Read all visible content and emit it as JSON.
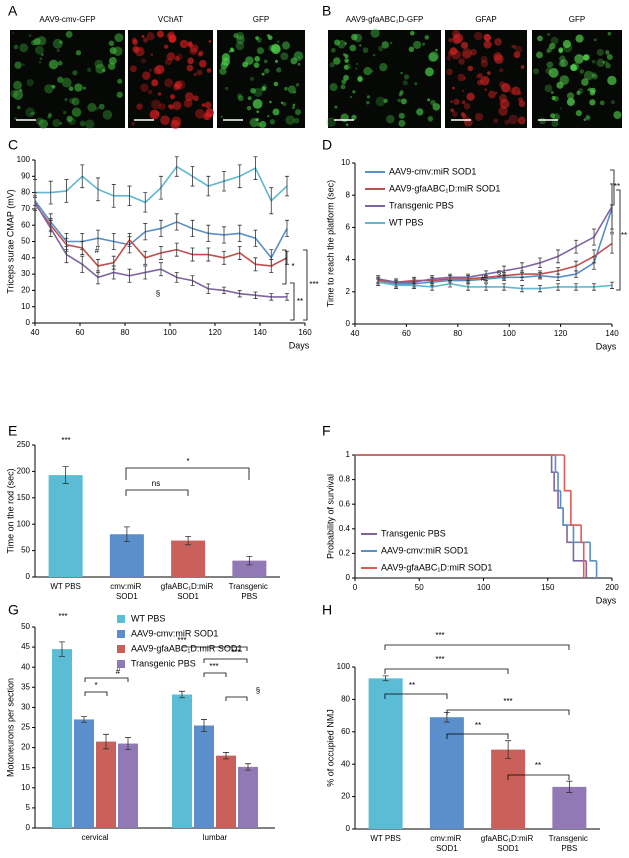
{
  "chart_data": [
    {
      "panel": "A",
      "type": "image",
      "captions": [
        "AAV9-cmv-GFP",
        "VChAT",
        "GFP"
      ],
      "colors": [
        "#3fae3a",
        "#e02020",
        "#4ad04a"
      ]
    },
    {
      "panel": "B",
      "type": "image",
      "captions": [
        "AAV9-gfaABC₁D-GFP",
        "GFAP",
        "GFP"
      ],
      "colors": [
        "#48c848",
        "#d42424",
        "#52cc4a"
      ]
    },
    {
      "panel": "C",
      "type": "line",
      "y_label": "Triceps surae CMAP (mV)",
      "x_label": "Days",
      "x": [
        40,
        47,
        54,
        61,
        68,
        75,
        82,
        89,
        96,
        103,
        110,
        117,
        124,
        131,
        138,
        145,
        152
      ],
      "xlim": [
        40,
        160
      ],
      "xticks": [
        40,
        60,
        80,
        100,
        120,
        140,
        160
      ],
      "ylim": [
        0,
        100
      ],
      "yticks": [
        0,
        10,
        20,
        30,
        40,
        50,
        60,
        70,
        80,
        90,
        100
      ],
      "series": [
        {
          "color": "#5fb8d0",
          "values": [
            80,
            80,
            81,
            90,
            82,
            78,
            78,
            74,
            83,
            96,
            90,
            84,
            87,
            90,
            95,
            75,
            84
          ],
          "errors": [
            8,
            7,
            7,
            7,
            7,
            7,
            6,
            6,
            7,
            6,
            6,
            6,
            6,
            7,
            7,
            8,
            6
          ]
        },
        {
          "color": "#5a8fc6",
          "values": [
            75,
            62,
            50,
            50,
            52,
            50,
            48,
            56,
            58,
            62,
            58,
            55,
            54,
            55,
            52,
            40,
            58
          ],
          "errors": [
            5,
            5,
            5,
            5,
            5,
            5,
            5,
            5,
            5,
            5,
            5,
            5,
            5,
            5,
            5,
            5,
            5
          ]
        },
        {
          "color": "#c0504d",
          "values": [
            73,
            60,
            48,
            46,
            35,
            37,
            51,
            40,
            43,
            45,
            42,
            42,
            40,
            43,
            36,
            35,
            40
          ],
          "errors": [
            4,
            4,
            4,
            4,
            4,
            4,
            4,
            4,
            4,
            4,
            4,
            4,
            4,
            4,
            4,
            4,
            4
          ]
        },
        {
          "color": "#8064a2",
          "values": [
            74,
            58,
            42,
            36,
            28,
            31,
            29,
            31,
            33,
            28,
            26,
            21,
            20,
            18,
            17,
            16,
            16
          ],
          "errors": [
            4,
            5,
            5,
            5,
            4,
            4,
            4,
            4,
            4,
            3,
            3,
            3,
            2,
            2,
            2,
            2,
            2
          ]
        }
      ],
      "annotations": [
        "#",
        "§",
        "*",
        "***",
        "**"
      ]
    },
    {
      "panel": "D",
      "type": "line",
      "y_label": "Time to reach the platform (sec)",
      "x_label": "Days",
      "x": [
        49,
        56,
        63,
        70,
        77,
        84,
        91,
        98,
        105,
        112,
        119,
        126,
        133,
        140
      ],
      "xlim": [
        40,
        140
      ],
      "xticks": [
        40,
        60,
        80,
        100,
        120,
        140
      ],
      "ylim": [
        0,
        10
      ],
      "yticks": [
        0,
        2,
        4,
        6,
        8,
        10
      ],
      "series": [
        {
          "name": "AAV9-cmv:miR SOD1",
          "color": "#5a8fc6",
          "values": [
            2.6,
            2.5,
            2.5,
            2.6,
            2.7,
            2.7,
            2.8,
            2.9,
            2.9,
            3.0,
            2.9,
            3.1,
            3.8,
            7.2
          ],
          "errors": [
            0.2,
            0.2,
            0.2,
            0.2,
            0.2,
            0.2,
            0.2,
            0.2,
            0.2,
            0.2,
            0.2,
            0.2,
            0.4,
            1.5
          ]
        },
        {
          "name": "AAV9-gfaABC₁D:miR SOD1",
          "color": "#c0504d",
          "values": [
            2.7,
            2.6,
            2.7,
            2.7,
            2.8,
            2.8,
            2.9,
            3.0,
            3.1,
            3.1,
            3.3,
            3.6,
            4.2,
            5.0
          ],
          "errors": [
            0.2,
            0.2,
            0.2,
            0.2,
            0.2,
            0.2,
            0.2,
            0.2,
            0.2,
            0.2,
            0.2,
            0.3,
            0.4,
            0.6
          ]
        },
        {
          "name": "Transgenic PBS",
          "color": "#8064a2",
          "values": [
            2.8,
            2.6,
            2.6,
            2.8,
            2.9,
            2.9,
            3.1,
            3.3,
            3.5,
            3.8,
            4.2,
            4.8,
            5.4,
            7.3
          ],
          "errors": [
            0.2,
            0.2,
            0.2,
            0.2,
            0.2,
            0.2,
            0.2,
            0.3,
            0.3,
            0.3,
            0.4,
            0.4,
            0.5,
            1.4
          ]
        },
        {
          "name": "WT PBS",
          "color": "#5fb8d0",
          "values": [
            2.6,
            2.4,
            2.4,
            2.3,
            2.5,
            2.3,
            2.3,
            2.3,
            2.2,
            2.2,
            2.3,
            2.3,
            2.3,
            2.4
          ],
          "errors": [
            0.2,
            0.2,
            0.2,
            0.2,
            0.2,
            0.2,
            0.2,
            0.2,
            0.2,
            0.2,
            0.2,
            0.2,
            0.2,
            0.2
          ]
        }
      ],
      "annotations": [
        "#",
        "§",
        "**",
        "**"
      ]
    },
    {
      "panel": "E",
      "type": "bar",
      "y_label": "Time on the rod (sec)",
      "categories": [
        "WT PBS",
        "cmv:miR\nSOD1",
        "gfaABC₁D:miR\nSOD1",
        "Transgenic\nPBS"
      ],
      "values": [
        193,
        81,
        69,
        31
      ],
      "errors": [
        16,
        14,
        8,
        8
      ],
      "colors": [
        "#5bbcd6",
        "#5b8fcb",
        "#c9605a",
        "#9079b4"
      ],
      "ylim": [
        0,
        250
      ],
      "yticks": [
        0,
        50,
        100,
        150,
        200,
        250
      ],
      "annotations": [
        "***",
        "ns",
        "*"
      ]
    },
    {
      "panel": "F",
      "type": "survival",
      "y_label": "Probability of survival",
      "x_label": "Days",
      "xlim": [
        0,
        200
      ],
      "xticks": [
        0,
        50,
        100,
        150,
        200
      ],
      "ylim": [
        0,
        1
      ],
      "yticks": [
        0,
        0.2,
        0.4,
        0.6,
        0.8,
        1
      ],
      "series": [
        {
          "name": "Transgenic PBS",
          "color": "#8064a2",
          "x": [
            0,
            153,
            155,
            158,
            162,
            165,
            170,
            180
          ],
          "values": [
            1,
            0.86,
            0.71,
            0.57,
            0.43,
            0.29,
            0.14,
            0
          ]
        },
        {
          "name": "AAV9-cmv:miR SOD1",
          "color": "#5a8fc6",
          "x": [
            0,
            156,
            158,
            160,
            162,
            170,
            183,
            188
          ],
          "values": [
            1,
            0.86,
            0.71,
            0.57,
            0.43,
            0.29,
            0.14,
            0
          ]
        },
        {
          "name": "AAV9-gfaABC₁D:miR SOD1",
          "color": "#e05a55",
          "x": [
            0,
            163,
            168,
            176,
            178
          ],
          "values": [
            1,
            0.71,
            0.43,
            0.29,
            0
          ]
        }
      ]
    },
    {
      "panel": "G",
      "type": "bar",
      "y_label": "Motoneurons per section",
      "categories": [
        "cervical",
        "lumbar"
      ],
      "ylim": [
        0,
        50
      ],
      "yticks": [
        0,
        5,
        10,
        15,
        20,
        25,
        30,
        35,
        40,
        45,
        50
      ],
      "series": [
        {
          "name": "WT PBS",
          "color": "#5bbcd6",
          "values": [
            44.5,
            33.2
          ],
          "errors": [
            1.8,
            0.8
          ]
        },
        {
          "name": "AAV9-cmv:miR SOD1",
          "color": "#5b8fcb",
          "values": [
            27,
            25.5
          ],
          "errors": [
            0.7,
            1.5
          ]
        },
        {
          "name": "AAV9-gfaABC₁D:miR SOD1",
          "color": "#c9605a",
          "values": [
            21.5,
            18
          ],
          "errors": [
            1.8,
            0.8
          ]
        },
        {
          "name": "Transgenic PBS",
          "color": "#9079b4",
          "values": [
            21,
            15.2
          ],
          "errors": [
            1.5,
            0.8
          ]
        }
      ],
      "annotations": [
        "***",
        "*",
        "#",
        "***",
        "***",
        "***",
        "§"
      ]
    },
    {
      "panel": "H",
      "type": "bar",
      "y_label": "% of occupied NMJ",
      "categories": [
        "WT PBS",
        "cmv:miR\nSOD1",
        "gfaABC₁D:miR\nSOD1",
        "Transgenic\nPBS"
      ],
      "values": [
        93,
        69,
        49,
        26
      ],
      "errors": [
        1.5,
        3,
        5.5,
        3.5
      ],
      "colors": [
        "#5bbcd6",
        "#5b8fcb",
        "#c9605a",
        "#9079b4"
      ],
      "ylim": [
        0,
        100
      ],
      "yticks": [
        0,
        20,
        40,
        60,
        80,
        100
      ],
      "annotations": [
        "**",
        "***",
        "***",
        "**",
        "***",
        "**"
      ]
    }
  ]
}
